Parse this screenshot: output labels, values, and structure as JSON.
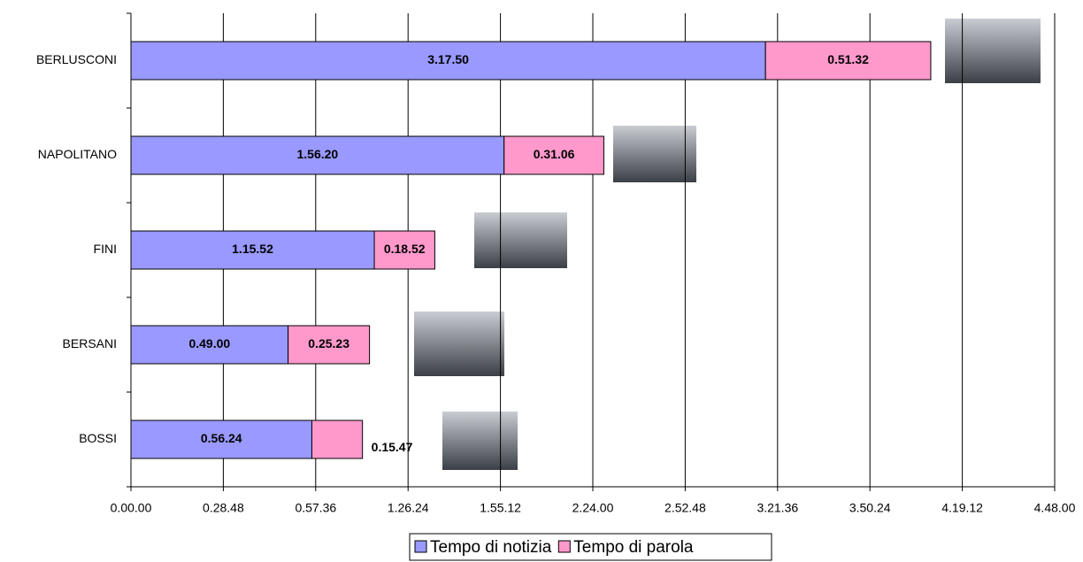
{
  "chart_data": {
    "type": "stacked-bar-horizontal",
    "categories": [
      "BERLUSCONI",
      "NAPOLITANO",
      "FINI",
      "BERSANI",
      "BOSSI"
    ],
    "series": [
      {
        "name": "Tempo di notizia",
        "color": "#9999ff",
        "values": [
          11870,
          6980,
          4552,
          2940,
          3384
        ],
        "value_labels": [
          "3.17.50",
          "1.56.20",
          "1.15.52",
          "0.49.00",
          "0.56.24"
        ]
      },
      {
        "name": "Tempo di parola",
        "color": "#ff99cc",
        "values": [
          3092,
          1866,
          1132,
          1523,
          947
        ],
        "value_labels": [
          "0.51.32",
          "0.31.06",
          "0.18.52",
          "0.25.23",
          "0.15.47"
        ]
      }
    ],
    "xlim": [
      0,
      17280
    ],
    "xticks": [
      {
        "value": 0,
        "label": "0.00.00"
      },
      {
        "value": 1728,
        "label": "0.28.48"
      },
      {
        "value": 3456,
        "label": "0.57.36"
      },
      {
        "value": 5184,
        "label": "1.26.24"
      },
      {
        "value": 6912,
        "label": "1.55.12"
      },
      {
        "value": 8640,
        "label": "2.24.00"
      },
      {
        "value": 10368,
        "label": "2.52.48"
      },
      {
        "value": 12096,
        "label": "3.21.36"
      },
      {
        "value": 13824,
        "label": "3.50.24"
      },
      {
        "value": 15552,
        "label": "4.19.12"
      },
      {
        "value": 17280,
        "label": "4.48.00"
      }
    ],
    "grid": true,
    "legend": "bottom"
  }
}
